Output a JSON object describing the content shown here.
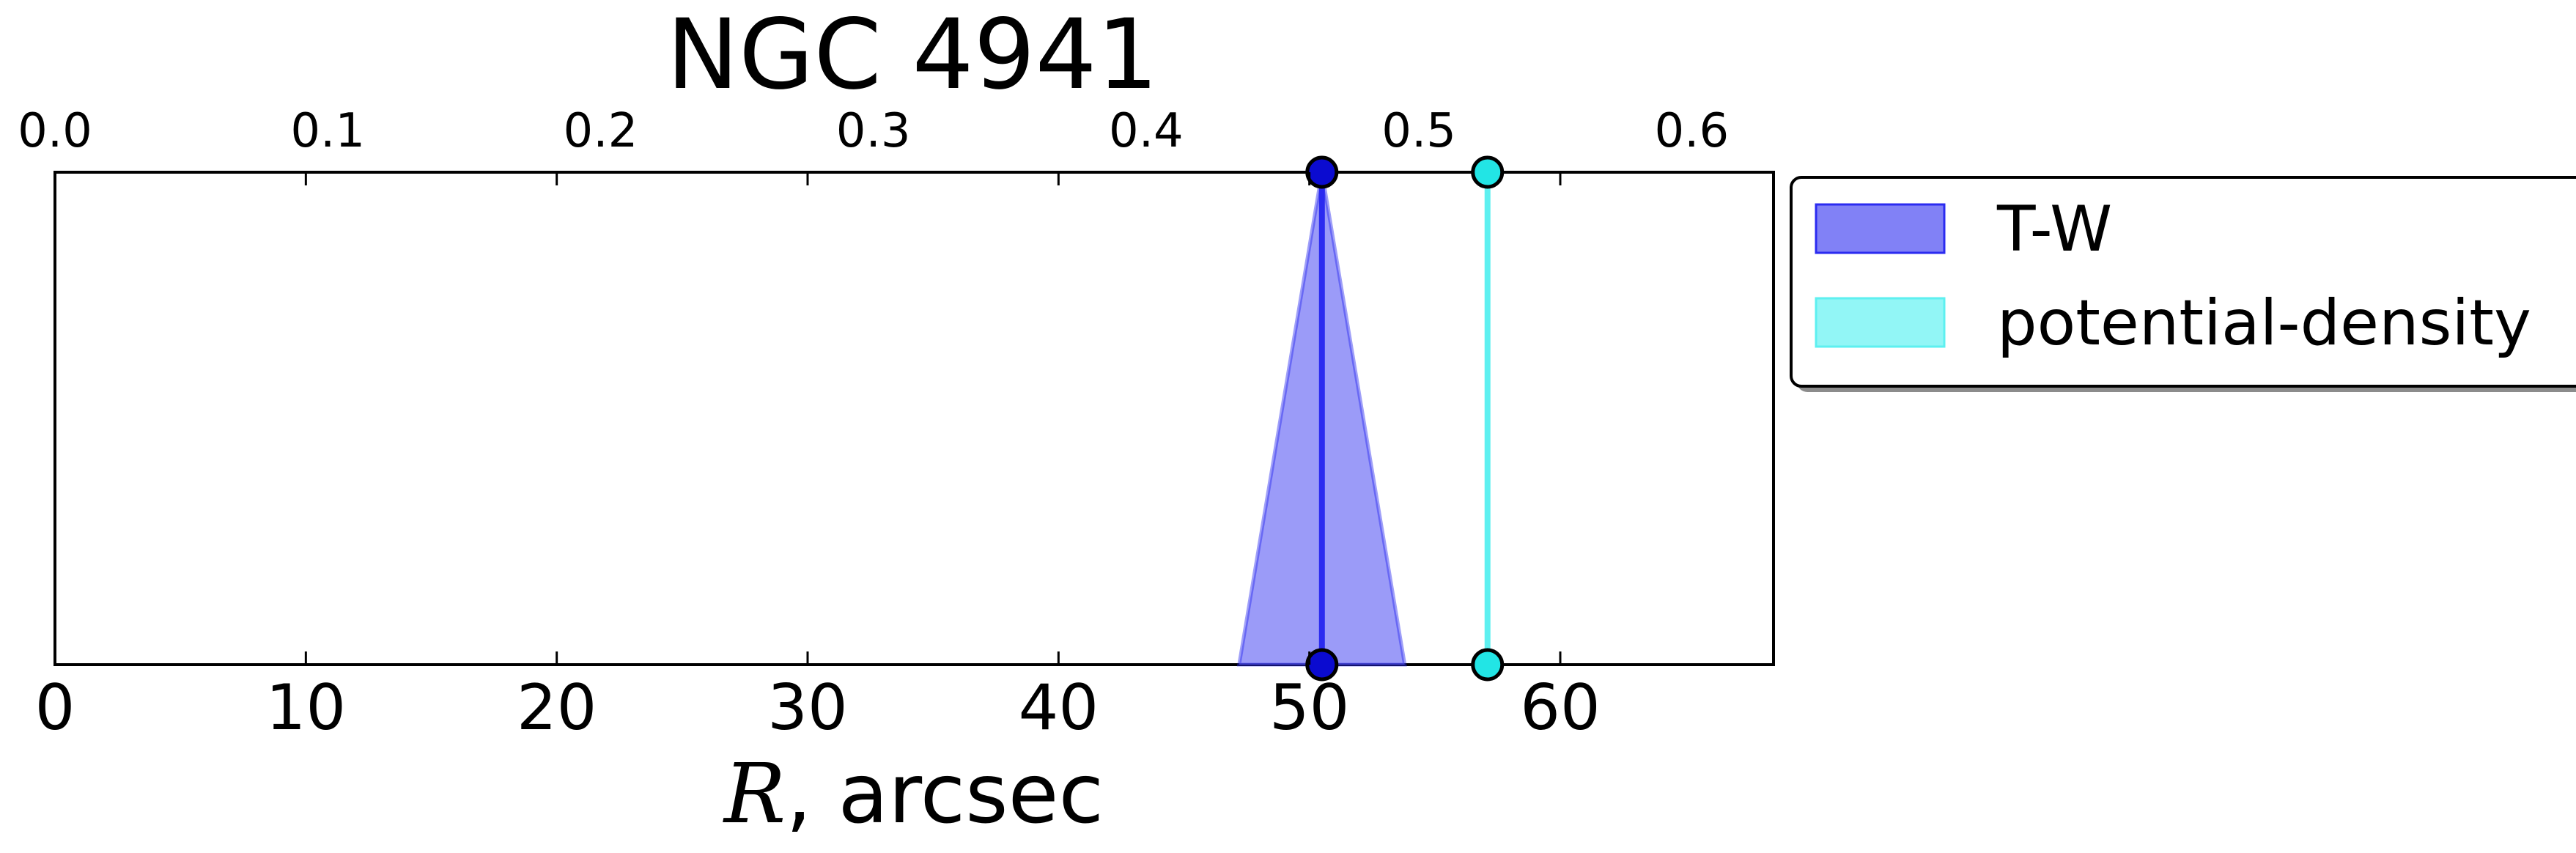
{
  "chart_data": {
    "type": "area",
    "title": "NGC 4941",
    "xlabel_var": "R",
    "xlabel_unit": ", arcsec",
    "bottom_axis": {
      "xlim": [
        0,
        68.5
      ],
      "ticks": [
        0,
        10,
        20,
        30,
        40,
        50,
        60
      ]
    },
    "top_axis": {
      "xlim": [
        0,
        0.63
      ],
      "ticks": [
        "0.0",
        "0.1",
        "0.2",
        "0.3",
        "0.4",
        "0.5",
        "0.6"
      ]
    },
    "grid": false,
    "legend_position": "outside-right-top",
    "series": [
      {
        "name": "T-W",
        "center": 50.5,
        "lower": 47.2,
        "upper": 53.8,
        "fill_color": "#6b6bf5",
        "line_color": "#2b2bf0",
        "marker_color": "#0b0bd0"
      },
      {
        "name": "potential-density",
        "center": 57.1,
        "lower": 57.1,
        "upper": 57.1,
        "fill_color": "#7ff5f5",
        "line_color": "#5ef0f0",
        "marker_color": "#22e5e5"
      }
    ]
  }
}
